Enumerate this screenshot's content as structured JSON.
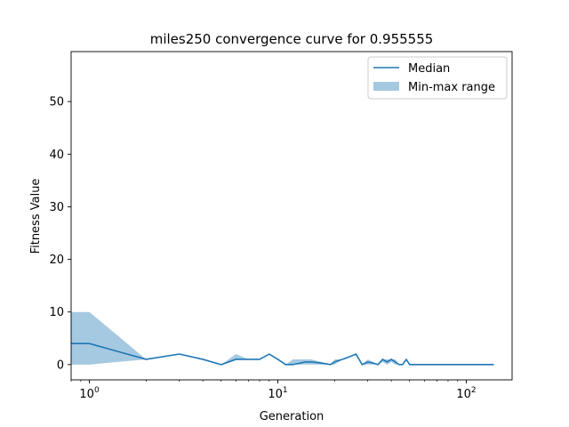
{
  "chart_data": {
    "type": "line",
    "title": "miles250 convergence curve for 0.955555",
    "xlabel": "Generation",
    "ylabel": "Fitness Value",
    "xscale": "log",
    "xlim": [
      0.8,
      175
    ],
    "ylim": [
      -2.9,
      59.5
    ],
    "x_ticks": [
      {
        "value": 1,
        "label": "10",
        "exp": "0"
      },
      {
        "value": 10,
        "label": "10",
        "exp": "1"
      },
      {
        "value": 100,
        "label": "10",
        "exp": "2"
      }
    ],
    "y_ticks": [
      0,
      10,
      20,
      30,
      40,
      50
    ],
    "grid": false,
    "legend_position": "top-right",
    "legend": [
      {
        "label": "Median",
        "kind": "line"
      },
      {
        "label": "Min-max range",
        "kind": "patch"
      }
    ],
    "colors": {
      "median": "#1f77b4",
      "range": "#1f77b4",
      "range_opacity": 0.4
    },
    "x": [
      0.8,
      1,
      2,
      3,
      4,
      5,
      6,
      7,
      8,
      9,
      10,
      11,
      12,
      14,
      15,
      17,
      19,
      20,
      22,
      24,
      26,
      28,
      30,
      32,
      34,
      36,
      38,
      40,
      42,
      44,
      46,
      48,
      50,
      55,
      60,
      70,
      80,
      100,
      120,
      140
    ],
    "median": [
      4,
      4,
      1,
      2,
      1,
      0,
      1,
      1,
      1,
      2,
      1,
      0,
      0,
      0.5,
      0.5,
      0.3,
      0,
      0.5,
      1,
      1.5,
      2,
      0,
      0.5,
      0.3,
      0,
      1,
      0.5,
      1,
      0.5,
      0,
      0,
      1,
      0,
      0,
      0,
      0,
      0,
      0,
      0,
      0
    ],
    "max": [
      10,
      10,
      1,
      2,
      1,
      0,
      2,
      1,
      1,
      2,
      1,
      0,
      1,
      1,
      1,
      0.5,
      0,
      1,
      1,
      1.5,
      2,
      0,
      1,
      0.5,
      0,
      1,
      1,
      1,
      1,
      0,
      0,
      1,
      0,
      0,
      0,
      0,
      0,
      0,
      0,
      0
    ],
    "min": [
      0,
      0,
      1,
      2,
      1,
      0,
      1,
      1,
      1,
      2,
      1,
      0,
      0,
      0,
      0,
      0,
      0,
      0,
      1,
      1.5,
      2,
      0,
      0,
      0,
      0,
      0.5,
      0,
      0.5,
      0,
      0,
      0,
      1,
      0,
      0,
      0,
      0,
      0,
      0,
      0,
      0
    ]
  }
}
